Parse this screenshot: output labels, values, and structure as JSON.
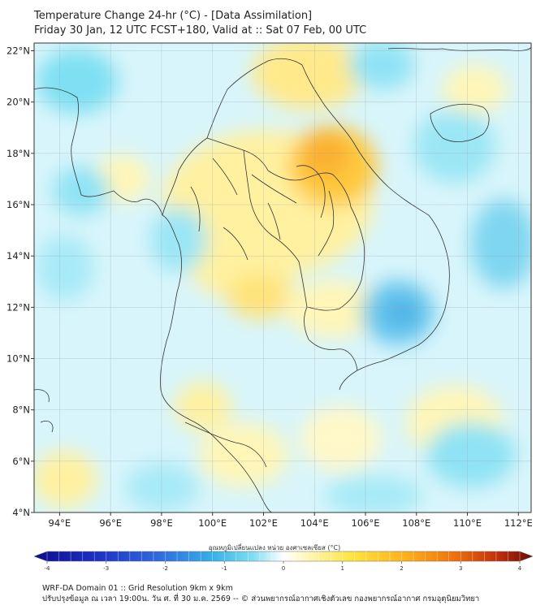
{
  "header": {
    "title": "Temperature Change 24-hr (°C) - [Data Assimilation]",
    "subtitle": "Friday 30 Jan, 12 UTC FCST+180, Valid at :: Sat 07 Feb, 00 UTC"
  },
  "map": {
    "lat_labels": [
      "22°N",
      "20°N",
      "18°N",
      "16°N",
      "14°N",
      "12°N",
      "10°N",
      "8°N",
      "6°N",
      "4°N"
    ],
    "lon_labels": [
      "94°E",
      "96°E",
      "98°E",
      "100°E",
      "102°E",
      "104°E",
      "106°E",
      "108°E",
      "110°E",
      "112°E"
    ],
    "lat_values": [
      22,
      20,
      18,
      16,
      14,
      12,
      10,
      8,
      6,
      4
    ],
    "lon_values": [
      94,
      96,
      98,
      100,
      102,
      104,
      106,
      108,
      110,
      112
    ],
    "lat_range": [
      4,
      22.3
    ],
    "lon_range": [
      93,
      112.5
    ]
  },
  "colorbar": {
    "title": "อุณหภูมิเปลี่ยนแปลง หน่วย องศาเซลเซียส (°C)",
    "range": [
      -4,
      4
    ],
    "tick_values": [
      -4,
      -3,
      -2,
      -1,
      0,
      1,
      2,
      3,
      4
    ],
    "tick_labels": [
      "-4",
      "-3",
      "-2",
      "-1",
      "0",
      "1",
      "2",
      "3",
      "4"
    ],
    "colors": [
      "#0c0d8c",
      "#1b2fc4",
      "#2f6ae0",
      "#35a3e8",
      "#3fd0ef",
      "#a7eaf7",
      "#ffffff",
      "#fff7b0",
      "#ffe64a",
      "#ffbf1f",
      "#f98a0c",
      "#d8400a",
      "#7a0c04"
    ]
  },
  "footer": {
    "line1": "WRF-DA Domain 01 :: Grid Resolution 9km x 9km",
    "line2": "ปรับปรุงข้อมูล ณ เวลา 19:00น. วัน ศ. ที่ 30 ม.ค. 2569 -- © ส่วนพยากรณ์อากาศเชิงตัวเลข กองพยากรณ์อากาศ กรมอุตุนิยมวิทยา"
  }
}
